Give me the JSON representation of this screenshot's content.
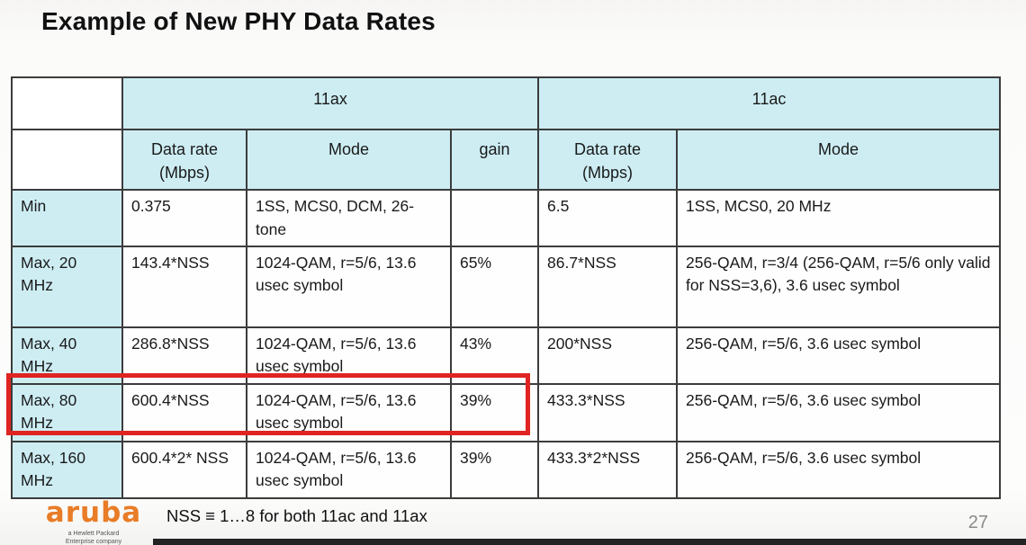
{
  "slide": {
    "title": "Example of New PHY Data Rates",
    "footnote": "NSS ≡ 1…8 for both 11ac and 11ax",
    "page_number": "27",
    "logo": {
      "brand": "aruba",
      "subtext": "a Hewlett Packard\nEnterprise company"
    }
  },
  "colors": {
    "header_fill": "#cdedf3",
    "row_label_fill": "#cdedf3",
    "table_border": "#3c3c3c",
    "highlight_red": "#df2421",
    "brand_orange": "#e97c26"
  },
  "table": {
    "group_headers": {
      "ax": "11ax",
      "ac": "11ac"
    },
    "column_headers": {
      "ax_rate": "Data rate (Mbps)",
      "ax_mode": "Mode",
      "gain": "gain",
      "ac_rate": "Data rate (Mbps)",
      "ac_mode": "Mode"
    },
    "rows": [
      {
        "label": "Min",
        "ax_rate": "0.375",
        "ax_mode": "1SS, MCS0, DCM, 26-tone",
        "gain": "",
        "ac_rate": "6.5",
        "ac_mode": "1SS, MCS0, 20 MHz",
        "highlight": false
      },
      {
        "label": "Max, 20 MHz",
        "ax_rate": "143.4*NSS",
        "ax_mode": "1024-QAM, r=5/6, 13.6 usec symbol",
        "gain": "65%",
        "ac_rate": "86.7*NSS",
        "ac_mode": "256-QAM, r=3/4 (256-QAM, r=5/6 only valid for NSS=3,6), 3.6 usec symbol",
        "highlight": false
      },
      {
        "label": "Max, 40 MHz",
        "ax_rate": "286.8*NSS",
        "ax_mode": "1024-QAM, r=5/6, 13.6 usec symbol",
        "gain": "43%",
        "ac_rate": "200*NSS",
        "ac_mode": "256-QAM, r=5/6, 3.6 usec symbol",
        "highlight": false
      },
      {
        "label": "Max, 80 MHz",
        "ax_rate": "600.4*NSS",
        "ax_mode": "1024-QAM, r=5/6, 13.6 usec symbol",
        "gain": "39%",
        "ac_rate": "433.3*NSS",
        "ac_mode": "256-QAM, r=5/6, 3.6 usec symbol",
        "highlight": true
      },
      {
        "label": "Max, 160 MHz",
        "ax_rate": "600.4*2* NSS",
        "ax_mode": "1024-QAM, r=5/6, 13.6 usec symbol",
        "gain": "39%",
        "ac_rate": "433.3*2*NSS",
        "ac_mode": "256-QAM, r=5/6, 3.6 usec symbol",
        "highlight": false
      }
    ]
  }
}
